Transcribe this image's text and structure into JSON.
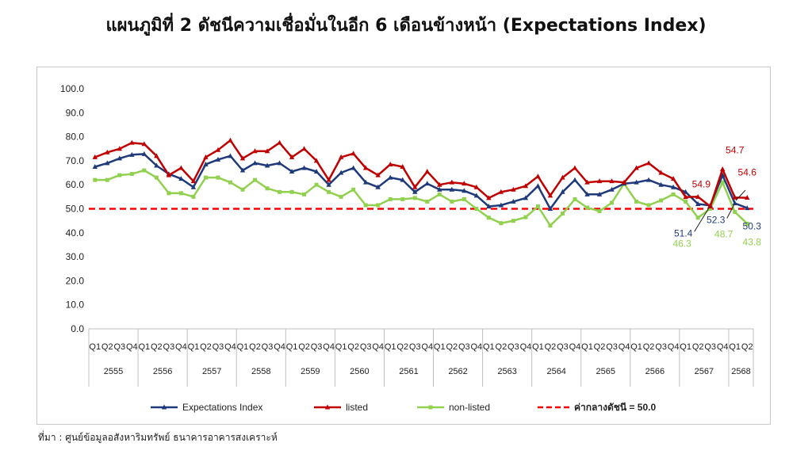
{
  "title": "แผนภูมิที่ 2 ดัชนีความเชื่อมั่นในอีก 6 เดือนข้างหน้า (Expectations Index)",
  "source": "ที่มา : ศูนย์ข้อมูลอสังหาริมทรัพย์ ธนาคารอาคารสงเคราะห์",
  "chart_data": {
    "type": "line",
    "title": "แผนภูมิที่ 2 ดัชนีความเชื่อมั่นในอีก 6 เดือนข้างหน้า (Expectations Index)",
    "xlabel": "",
    "ylabel": "",
    "ylim": [
      0,
      100
    ],
    "yticks": [
      "0.0",
      "10.0",
      "20.0",
      "30.0",
      "40.0",
      "50.0",
      "60.0",
      "70.0",
      "80.0",
      "90.0",
      "100.0"
    ],
    "grid": false,
    "legend_position": "bottom",
    "quarters": [
      "Q1",
      "Q2",
      "Q3",
      "Q4",
      "Q1",
      "Q2",
      "Q3",
      "Q4",
      "Q1",
      "Q2",
      "Q3",
      "Q4",
      "Q1",
      "Q2",
      "Q3",
      "Q4",
      "Q1",
      "Q2",
      "Q3",
      "Q4",
      "Q1",
      "Q2",
      "Q3",
      "Q4",
      "Q1",
      "Q2",
      "Q3",
      "Q4",
      "Q1",
      "Q2",
      "Q3",
      "Q4",
      "Q1",
      "Q2",
      "Q3",
      "Q4",
      "Q1",
      "Q2",
      "Q3",
      "Q4",
      "Q1",
      "Q2",
      "Q3",
      "Q4",
      "Q1",
      "Q2",
      "Q3",
      "Q4",
      "Q1",
      "Q2",
      "Q3",
      "Q4",
      "Q1",
      "Q2"
    ],
    "years": [
      {
        "label": "2555",
        "quarters": 4
      },
      {
        "label": "2556",
        "quarters": 4
      },
      {
        "label": "2557",
        "quarters": 4
      },
      {
        "label": "2558",
        "quarters": 4
      },
      {
        "label": "2559",
        "quarters": 4
      },
      {
        "label": "2560",
        "quarters": 4
      },
      {
        "label": "2561",
        "quarters": 4
      },
      {
        "label": "2562",
        "quarters": 4
      },
      {
        "label": "2563",
        "quarters": 4
      },
      {
        "label": "2564",
        "quarters": 4
      },
      {
        "label": "2565",
        "quarters": 4
      },
      {
        "label": "2566",
        "quarters": 4
      },
      {
        "label": "2567",
        "quarters": 4
      },
      {
        "label": "2568",
        "quarters": 2
      }
    ],
    "series": [
      {
        "name": "Expectations Index",
        "color": "#1f3a7a",
        "marker": "triangle",
        "values": [
          67.5,
          69,
          71,
          72.5,
          72.8,
          68,
          64.5,
          62.5,
          59,
          68.5,
          70.5,
          72,
          66,
          69,
          68,
          69,
          65.5,
          67,
          65.5,
          60,
          65,
          67,
          61,
          59,
          63,
          62,
          57,
          60.5,
          58,
          58,
          57.5,
          55.5,
          51,
          51.5,
          53,
          54.5,
          59.5,
          50,
          57,
          62,
          56,
          56,
          58,
          60.5,
          61,
          62,
          60,
          59,
          57,
          52,
          51.4,
          64,
          52.3,
          50.3
        ]
      },
      {
        "name": "listed",
        "color": "#c00000",
        "marker": "triangle",
        "values": [
          71.5,
          73.5,
          75,
          77.5,
          77,
          72,
          64,
          67,
          61.5,
          71.5,
          74.5,
          78.5,
          71,
          74,
          74,
          77.5,
          71.5,
          75,
          70,
          62,
          71.5,
          73,
          67,
          64,
          68.5,
          67.5,
          59,
          65.5,
          60,
          61,
          60.5,
          59,
          54.5,
          57,
          58,
          59.5,
          63.5,
          55.5,
          63,
          67,
          61,
          61.5,
          61.5,
          61,
          67,
          69,
          65,
          62.5,
          54.9,
          55,
          51,
          66.5,
          54.7,
          54.6
        ]
      },
      {
        "name": "non-listed",
        "color": "#92d050",
        "marker": "square",
        "values": [
          62,
          62,
          64,
          64.5,
          66,
          63,
          56.5,
          56.5,
          55,
          63,
          63,
          61,
          58,
          62,
          58.5,
          57,
          57,
          56,
          60,
          57,
          55,
          58,
          51.5,
          51.5,
          54,
          54,
          54.5,
          53,
          56,
          53,
          54,
          50,
          46.3,
          44,
          45,
          46.5,
          51,
          43,
          48,
          54,
          50.5,
          49,
          52.5,
          60.5,
          53,
          51.5,
          53.5,
          56,
          53,
          46.3,
          50,
          61,
          48.7,
          43.8
        ]
      },
      {
        "name": "ค่ากลางดัชนี = 50.0",
        "color": "#ff0000",
        "dashed": true,
        "value": 50.0
      }
    ],
    "annotations": [
      {
        "text": "54.9",
        "series": "listed",
        "x_index": 48
      },
      {
        "text": "54.7",
        "series": "listed",
        "x_index": 52
      },
      {
        "text": "54.6",
        "series": "listed",
        "x_index": 53
      },
      {
        "text": "51.4",
        "series": "Expectations Index",
        "x_index": 50
      },
      {
        "text": "52.3",
        "series": "Expectations Index",
        "x_index": 52
      },
      {
        "text": "50.3",
        "series": "Expectations Index",
        "x_index": 53
      },
      {
        "text": "46.3",
        "series": "non-listed",
        "x_index": 49
      },
      {
        "text": "48.7",
        "series": "non-listed",
        "x_index": 52
      },
      {
        "text": "43.8",
        "series": "non-listed",
        "x_index": 53
      }
    ]
  }
}
